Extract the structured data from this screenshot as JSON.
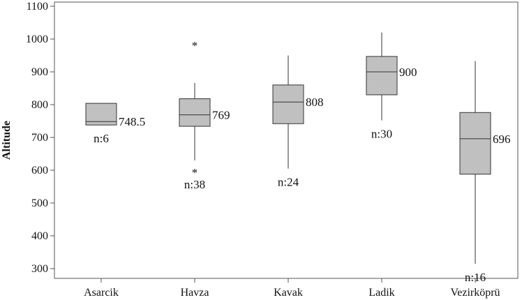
{
  "chart_data": {
    "type": "boxplot",
    "ylabel": "Altitude",
    "xlabel": "",
    "ylim": [
      270,
      1100
    ],
    "yticks": [
      300,
      400,
      500,
      600,
      700,
      800,
      900,
      1000,
      1100
    ],
    "grid": false,
    "box_fill": "#c0c0c0",
    "categories": [
      "Asarcik",
      "Havza",
      "Kavak",
      "Ladik",
      "Vezirköprü"
    ],
    "boxes": [
      {
        "min": 738,
        "q1": 738,
        "median": 748.5,
        "q3": 804,
        "max": 804,
        "outliers": [],
        "median_label": "748.5",
        "n_label": "n:6"
      },
      {
        "min": 630,
        "q1": 734,
        "median": 769,
        "q3": 818,
        "max": 866,
        "outliers": [
          985,
          598
        ],
        "median_label": "769",
        "n_label": "n:38"
      },
      {
        "min": 605,
        "q1": 742,
        "median": 808,
        "q3": 860,
        "max": 950,
        "outliers": [],
        "median_label": "808",
        "n_label": "n:24"
      },
      {
        "min": 752,
        "q1": 830,
        "median": 900,
        "q3": 947,
        "max": 1020,
        "outliers": [],
        "median_label": "900",
        "n_label": "n:30"
      },
      {
        "min": 315,
        "q1": 588,
        "median": 696,
        "q3": 776,
        "max": 933,
        "outliers": [],
        "median_label": "696",
        "n_label": "n:16"
      }
    ]
  }
}
